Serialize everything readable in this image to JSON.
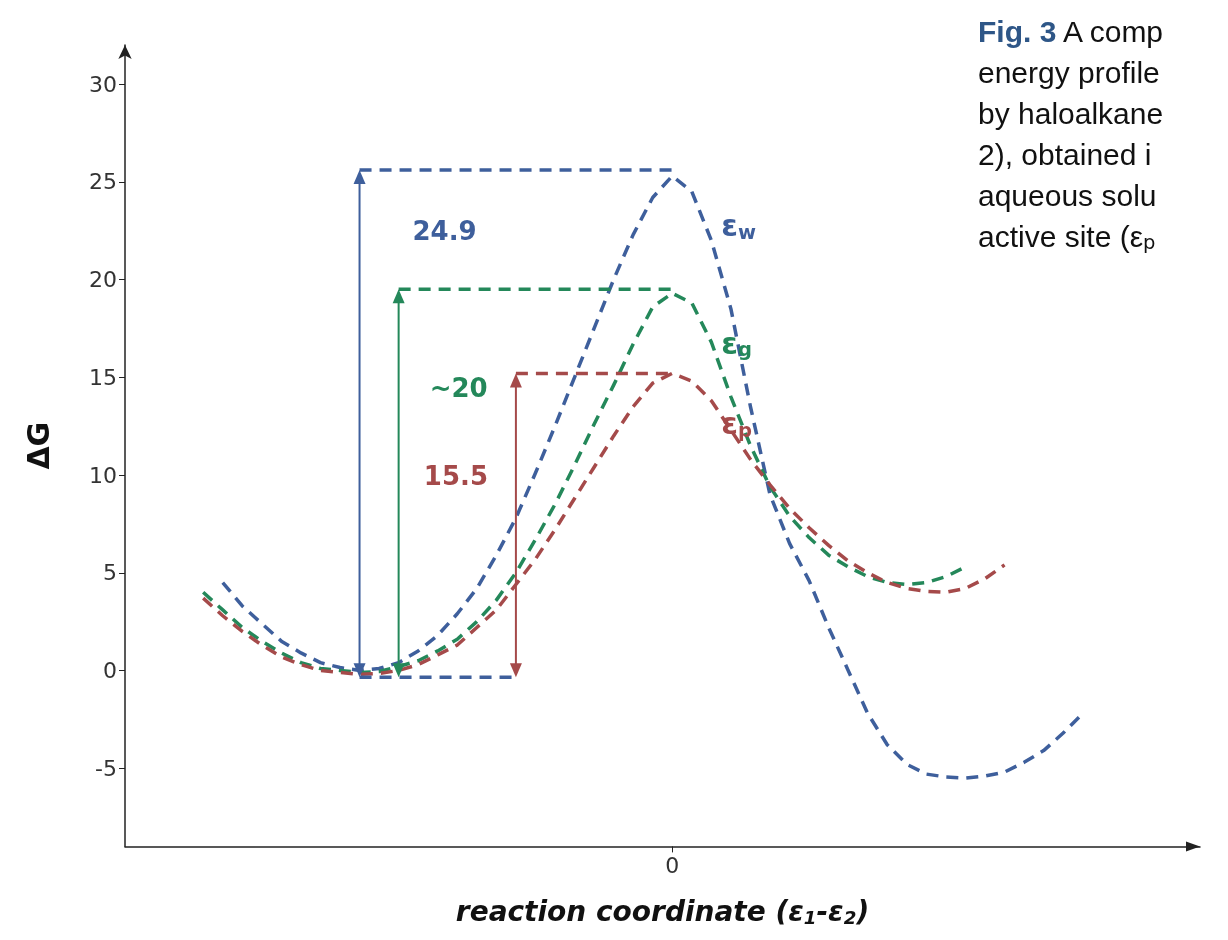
{
  "chart_data": {
    "type": "line",
    "xlabel": "reaction coordinate (ε$_{1}$-ε$_{2}$)",
    "ylabel": "ΔG",
    "categories": [
      null,
      null,
      null,
      null,
      null,
      null,
      null,
      null,
      null,
      null,
      null,
      null,
      null,
      null,
      null,
      null,
      null,
      null,
      null,
      null,
      null,
      null,
      null,
      null,
      null,
      null,
      null,
      null,
      "0",
      null,
      null,
      null,
      null,
      null,
      null,
      null,
      null,
      null,
      null,
      null,
      null,
      null,
      null,
      null,
      null,
      null,
      null,
      null,
      null,
      null,
      null,
      null,
      null,
      null,
      null,
      null
    ],
    "ylim": [
      -9,
      32
    ],
    "yticks": [
      -5,
      0,
      5,
      10,
      15,
      20,
      25,
      30
    ],
    "marker": "none",
    "line_style": "dashed",
    "series": [
      {
        "name": "ε$_{w}$",
        "color": "#3e5f9c",
        "values": [
          null,
          null,
          null,
          null,
          null,
          4.5,
          3.3,
          2.4,
          1.5,
          0.9,
          0.4,
          0.15,
          0,
          0.1,
          0.4,
          1.0,
          1.8,
          2.9,
          4.2,
          5.9,
          7.8,
          10.1,
          12.5,
          15.0,
          17.5,
          20.0,
          22.3,
          24.2,
          25.3,
          24.5,
          22,
          18.5,
          13.5,
          9,
          6.5,
          4.6,
          2.2,
          0,
          -2.2,
          -3.8,
          -4.8,
          -5.3,
          -5.45,
          -5.5,
          -5.4,
          -5.2,
          -4.7,
          -4.1,
          -3.2,
          -2.2,
          null,
          null,
          null,
          null,
          null,
          null
        ]
      },
      {
        "name": "ε$_{g}$",
        "color": "#24885a",
        "values": [
          null,
          null,
          null,
          null,
          4.0,
          3.1,
          2.2,
          1.5,
          0.9,
          0.4,
          0.1,
          0,
          -0.1,
          -0.05,
          0.2,
          0.5,
          1.0,
          1.6,
          2.5,
          3.6,
          5.0,
          6.7,
          8.5,
          10.5,
          12.6,
          14.6,
          16.7,
          18.6,
          19.3,
          18.8,
          16.8,
          14,
          11.5,
          9.4,
          7.9,
          6.8,
          5.9,
          5.3,
          4.8,
          4.5,
          4.4,
          4.5,
          4.8,
          5.3,
          null,
          null,
          null,
          null,
          null,
          null,
          null,
          null,
          null,
          null,
          null,
          null
        ]
      },
      {
        "name": "ε$_{p}$",
        "color": "#a54a4a",
        "values": [
          null,
          null,
          null,
          null,
          3.7,
          2.8,
          2.0,
          1.3,
          0.7,
          0.3,
          0,
          -0.1,
          -0.2,
          -0.15,
          0,
          0.3,
          0.8,
          1.3,
          2.2,
          3.1,
          4.4,
          5.7,
          7.2,
          8.8,
          10.4,
          12.0,
          13.5,
          14.7,
          15.2,
          14.8,
          13.8,
          12.3,
          10.8,
          9.5,
          8.3,
          7.3,
          6.4,
          5.6,
          5.0,
          4.5,
          4.2,
          4.05,
          4.0,
          4.2,
          4.7,
          5.4,
          null,
          null,
          null,
          null,
          null,
          null,
          null,
          null,
          null,
          null
        ]
      },
      {
        "color": "#3e5f9c",
        "values": [
          null,
          null,
          null,
          null,
          null,
          null,
          null,
          null,
          null,
          null,
          null,
          null,
          25.6,
          25.6,
          25.6,
          25.6,
          25.6,
          25.6,
          25.6,
          25.6,
          25.6,
          25.6,
          25.6,
          25.6,
          25.6,
          25.6,
          25.6,
          25.6,
          25.6,
          null,
          null,
          null,
          null,
          null,
          null,
          null,
          null,
          null,
          null,
          null,
          null,
          null,
          null,
          null,
          null,
          null,
          null,
          null,
          null,
          null,
          null,
          null,
          null,
          null,
          null,
          null
        ]
      },
      {
        "color": "#3e5f9c",
        "values": [
          null,
          null,
          null,
          null,
          null,
          null,
          null,
          null,
          null,
          null,
          null,
          null,
          -0.35,
          -0.35,
          -0.35,
          -0.35,
          -0.35,
          -0.35,
          -0.35,
          -0.35,
          -0.35,
          null,
          null,
          null,
          null,
          null,
          null,
          null,
          null,
          null,
          null,
          null,
          null,
          null,
          null,
          null,
          null,
          null,
          null,
          null,
          null,
          null,
          null,
          null,
          null,
          null,
          null,
          null,
          null,
          null,
          null,
          null,
          null,
          null,
          null,
          null
        ]
      },
      {
        "color": "#24885a",
        "values": [
          null,
          null,
          null,
          null,
          null,
          null,
          null,
          null,
          null,
          null,
          null,
          null,
          null,
          null,
          19.5,
          19.5,
          19.5,
          19.5,
          19.5,
          19.5,
          19.5,
          19.5,
          19.5,
          19.5,
          19.5,
          19.5,
          19.5,
          19.5,
          19.5,
          null,
          null,
          null,
          null,
          null,
          null,
          null,
          null,
          null,
          null,
          null,
          null,
          null,
          null,
          null,
          null,
          null,
          null,
          null,
          null,
          null,
          null,
          null,
          null,
          null,
          null,
          null
        ]
      },
      {
        "color": "#a54a4a",
        "values": [
          null,
          null,
          null,
          null,
          null,
          null,
          null,
          null,
          null,
          null,
          null,
          null,
          null,
          null,
          null,
          null,
          null,
          null,
          null,
          null,
          15.2,
          15.2,
          15.2,
          15.2,
          15.2,
          15.2,
          15.2,
          15.2,
          15.2,
          null,
          null,
          null,
          null,
          null,
          null,
          null,
          null,
          null,
          null,
          null,
          null,
          null,
          null,
          null,
          null,
          null,
          null,
          null,
          null,
          null,
          null,
          null,
          null,
          null,
          null,
          null
        ]
      }
    ],
    "annotations": [
      "24.9",
      "~20",
      "15.5",
      "Fig. 3",
      "A comp",
      "energy profile",
      "by haloalkane",
      "2), obtained i",
      "aqueous solu",
      "active site (ε$_{p}$"
    ]
  }
}
